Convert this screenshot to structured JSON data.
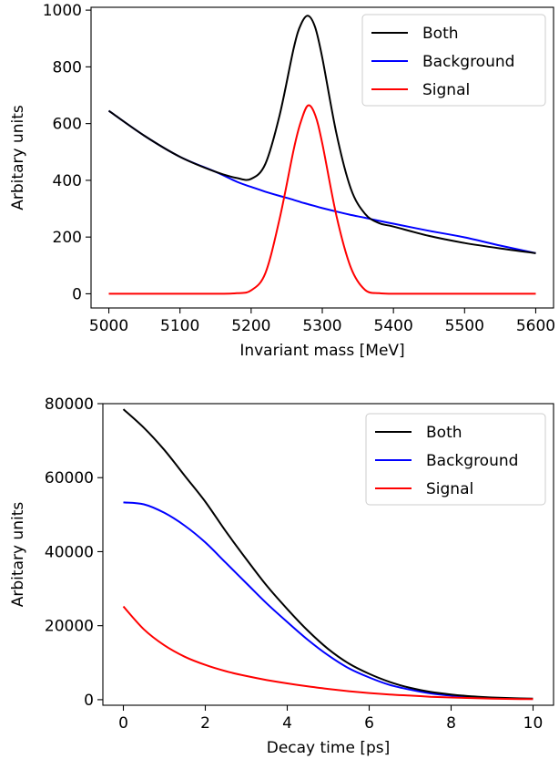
{
  "chart_data": [
    {
      "type": "line",
      "title": "",
      "xlabel": "Invariant mass [MeV]",
      "ylabel": "Arbitary units",
      "xlim": [
        4975,
        5625
      ],
      "ylim": [
        -50,
        1010
      ],
      "xticks": [
        5000,
        5100,
        5200,
        5300,
        5400,
        5500,
        5600
      ],
      "yticks": [
        0,
        200,
        400,
        600,
        800,
        1000
      ],
      "xtick_labels": [
        "5000",
        "5100",
        "5200",
        "5300",
        "5400",
        "5500",
        "5600"
      ],
      "ytick_labels": [
        "0",
        "200",
        "400",
        "600",
        "800",
        "1000"
      ],
      "grid": false,
      "legend_position": "top-right",
      "x": [
        5000,
        5050,
        5100,
        5150,
        5180,
        5200,
        5220,
        5240,
        5260,
        5270,
        5280,
        5290,
        5300,
        5320,
        5340,
        5360,
        5380,
        5400,
        5450,
        5500,
        5550,
        5600
      ],
      "series": [
        {
          "name": "Both",
          "color": "#000000",
          "values": [
            645,
            557,
            483,
            430,
            408,
            405,
            458,
            629,
            867,
            950,
            980,
            939,
            832,
            564,
            371,
            282,
            249,
            237,
            204,
            179,
            160,
            143
          ]
        },
        {
          "name": "Background",
          "color": "#0000ff",
          "values": [
            645,
            557,
            483,
            430,
            395,
            377,
            360,
            345,
            331,
            323,
            316,
            309,
            302,
            290,
            278,
            268,
            257,
            247,
            222,
            199,
            170,
            143
          ]
        },
        {
          "name": "Signal",
          "color": "#ff0000",
          "values": [
            0,
            0,
            0,
            0,
            2,
            12,
            73,
            264,
            510,
            608,
            664,
            630,
            530,
            274,
            93,
            14,
            2,
            0,
            0,
            0,
            0,
            0
          ]
        }
      ]
    },
    {
      "type": "line",
      "title": "",
      "xlabel": "Decay time [ps]",
      "ylabel": "Arbitary units",
      "xlim": [
        -0.5,
        10.5
      ],
      "ylim": [
        -1500,
        80000
      ],
      "xticks": [
        0,
        2,
        4,
        6,
        8,
        10
      ],
      "yticks": [
        0,
        20000,
        40000,
        60000,
        80000
      ],
      "xtick_labels": [
        "0",
        "2",
        "4",
        "6",
        "8",
        "10"
      ],
      "ytick_labels": [
        "0",
        "20000",
        "40000",
        "60000",
        "80000"
      ],
      "grid": false,
      "legend_position": "top-right",
      "x": [
        0,
        0.5,
        1,
        1.5,
        2,
        2.5,
        3,
        3.5,
        4,
        4.5,
        5,
        5.5,
        6,
        6.5,
        7,
        7.5,
        8,
        8.5,
        9,
        9.5,
        10
      ],
      "series": [
        {
          "name": "Both",
          "color": "#000000",
          "values": [
            78500,
            73500,
            67500,
            60500,
            53500,
            45500,
            38000,
            30800,
            24500,
            18700,
            13700,
            9800,
            7000,
            4800,
            3200,
            2100,
            1400,
            900,
            600,
            400,
            300
          ]
        },
        {
          "name": "Background",
          "color": "#0000ff",
          "values": [
            53300,
            52800,
            50500,
            47000,
            42500,
            37000,
            31500,
            26000,
            21000,
            16200,
            12000,
            8500,
            6000,
            4000,
            2700,
            1700,
            1100,
            700,
            450,
            300,
            200
          ]
        },
        {
          "name": "Signal",
          "color": "#ff0000",
          "values": [
            25200,
            19000,
            14700,
            11600,
            9400,
            7700,
            6400,
            5300,
            4400,
            3600,
            2900,
            2300,
            1800,
            1400,
            1100,
            800,
            600,
            450,
            300,
            200,
            150
          ]
        }
      ]
    }
  ]
}
